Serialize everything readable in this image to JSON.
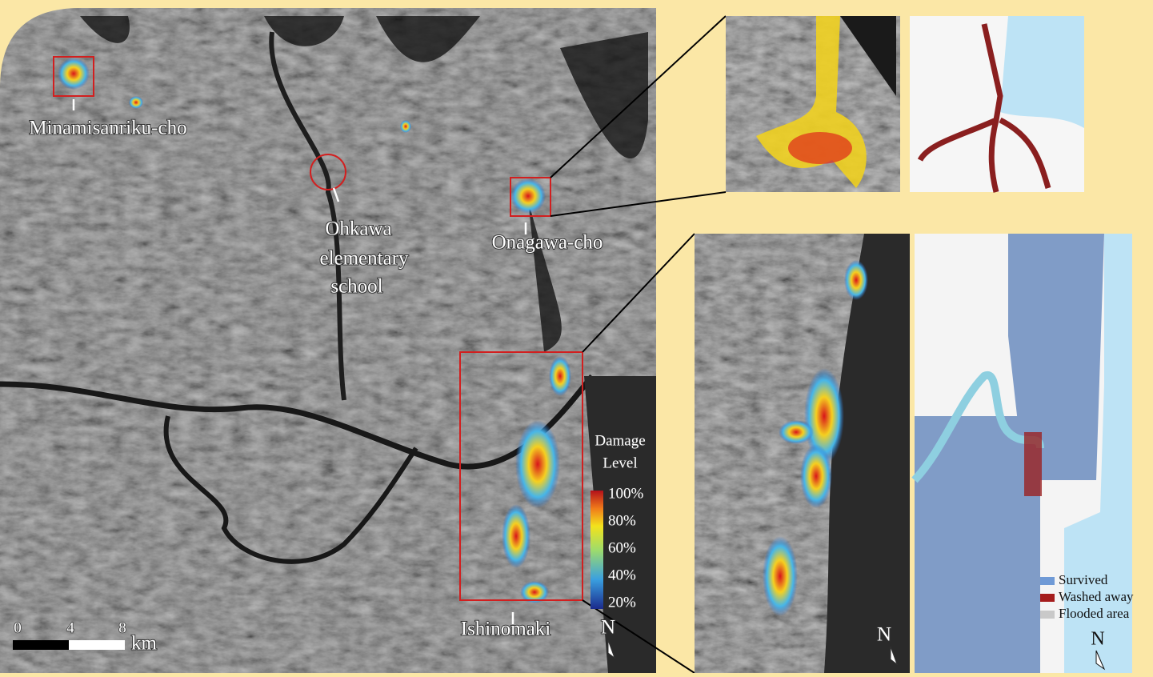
{
  "main_map": {
    "places": {
      "minamisanriku": "Minamisanriku-cho",
      "ohkawa": [
        "Ohkawa",
        "elementary",
        "school"
      ],
      "onagawa": "Onagawa-cho",
      "ishinomaki": "Ishinomaki"
    },
    "colorbar": {
      "title": [
        "Damage",
        "Level"
      ],
      "ticks": [
        "100%",
        "80%",
        "60%",
        "40%",
        "20%"
      ]
    },
    "scale_bar": {
      "ticks": [
        "0",
        "4",
        "8"
      ],
      "unit": "km"
    },
    "north": "N"
  },
  "inset_bottom": {
    "north": "N"
  },
  "inset_legend": {
    "items": [
      {
        "name": "Survived",
        "color": "#6f9ad6"
      },
      {
        "name": "Washed away",
        "color": "#a51c1c"
      },
      {
        "name": "Flooded area",
        "color": "#c9c9c9"
      }
    ],
    "north": "N"
  }
}
